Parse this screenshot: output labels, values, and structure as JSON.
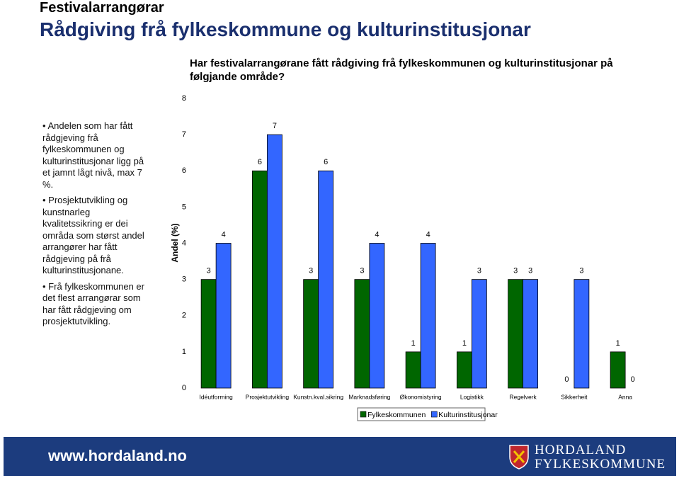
{
  "header": {
    "section": "Festivalarrangørar",
    "title": "Rådgiving frå fylkeskommune og kulturinstitusjonar"
  },
  "bullets": [
    "Andelen som har fått rådgjeving frå fylkeskommunen og kulturinstitusjonar ligg på et jamnt lågt nivå, max 7 %.",
    "Prosjektutvikling og kunstnarleg kvalitetssikring er dei områda som størst andel arrangører har fått rådgjeving på frå kulturinstitusjonane.",
    "Frå fylkeskommunen er det flest arrangørar som har fått rådgjeving om prosjektutvikling."
  ],
  "chart_data": {
    "type": "bar",
    "title": "Har festivalarrangørane fått rådgiving frå fylkeskommunen og  kulturinstitusjonar på følgjande område?",
    "y_label": "Andel (%)",
    "categories": [
      "Idéutforming",
      "Prosjektutvikling",
      "Kunstn.kval.sikring",
      "Marknadsføring",
      "Økonomistyring",
      "Logistikk",
      "Regelverk",
      "Sikkerheit",
      "Anna"
    ],
    "series": [
      {
        "name": "Fylkeskommunen",
        "color": "#006600",
        "values": [
          3,
          6,
          3,
          3,
          1,
          1,
          3,
          0,
          1
        ]
      },
      {
        "name": "Kulturinstitusjonar",
        "color": "#3366ff",
        "values": [
          4,
          7,
          6,
          4,
          4,
          3,
          3,
          3,
          0
        ]
      }
    ],
    "ylim": [
      0,
      8
    ],
    "yticks": [
      0,
      1,
      2,
      3,
      4,
      5,
      6,
      7,
      8
    ],
    "grid": false,
    "legend": "bottom"
  },
  "footer": {
    "url": "www.hordaland.no",
    "logo_line1": "HORDALAND",
    "logo_line2": "FYLKESKOMMUNE"
  }
}
